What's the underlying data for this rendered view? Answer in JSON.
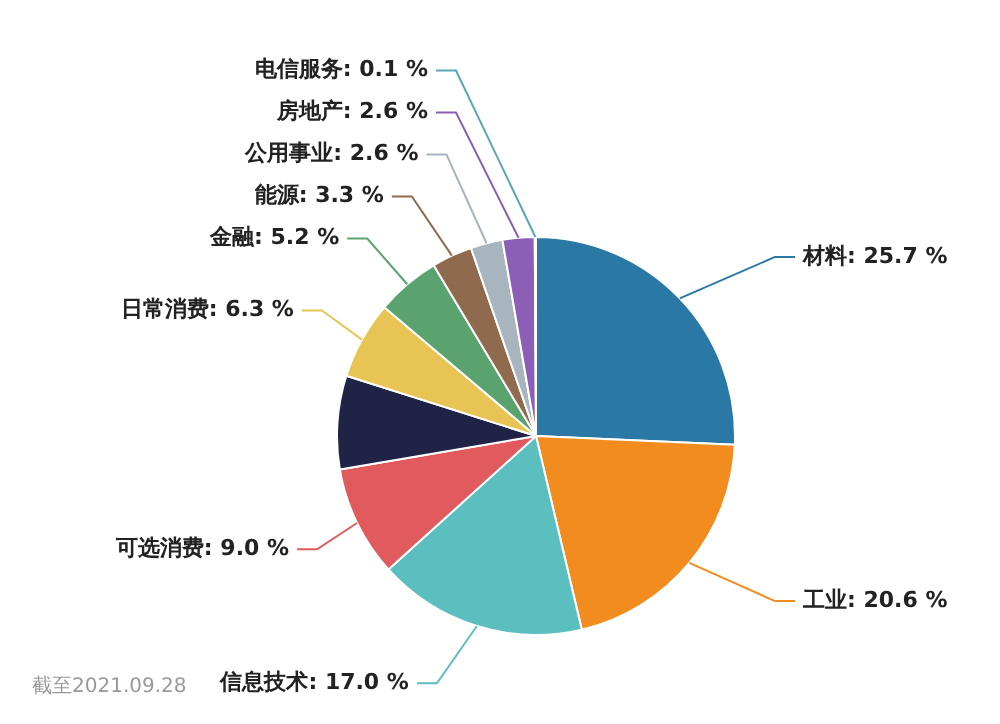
{
  "chart_data": {
    "type": "pie",
    "categories": [
      "材料",
      "工业",
      "信息技术",
      "可选消费",
      null,
      "日常消费",
      "金融",
      "能源",
      "公用事业",
      "房地产",
      "电信服务"
    ],
    "values": [
      25.7,
      20.6,
      17.0,
      9.0,
      7.6,
      6.3,
      5.2,
      3.3,
      2.6,
      2.6,
      0.1
    ],
    "value_labels": [
      "25.7 %",
      "20.6 %",
      "17.0 %",
      "9.0 %",
      null,
      "6.3 %",
      "5.2 %",
      "3.3 %",
      "2.6 %",
      "2.6 %",
      "0.1 %"
    ],
    "colors": [
      "#2a78a4",
      "#f28c1e",
      "#5cbfbf",
      "#e05a5e",
      "#1f2446",
      "#e8c454",
      "#5ba36e",
      "#8f6a4e",
      "#a8b4be",
      "#8a5fb5",
      "#5ba6b6"
    ],
    "legend": false,
    "annotations": [
      "截至2021.09.28"
    ]
  }
}
